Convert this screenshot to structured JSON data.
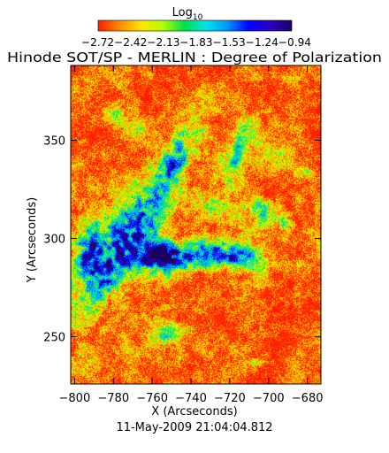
{
  "chart_data": {
    "type": "heatmap",
    "title": "Hinode SOT/SP - MERLIN : Degree of Polarization",
    "timestamp": "11-May-2009 21:04:04.812",
    "xlabel": "X (Arcseconds)",
    "ylabel": "Y (Arcseconds)",
    "xlim": [
      -802,
      -673
    ],
    "ylim": [
      226,
      388
    ],
    "x_ticks": [
      -800,
      -780,
      -760,
      -740,
      -720,
      -700,
      -680
    ],
    "x_tick_labels": [
      "−800",
      "−780",
      "−760",
      "−740",
      "−720",
      "−700",
      "−680"
    ],
    "y_ticks": [
      250,
      300,
      350
    ],
    "y_tick_labels": [
      "250",
      "300",
      "350"
    ],
    "colorbar": {
      "label": "Log",
      "label_subscript": "10",
      "scale": "log10",
      "range": [
        -2.72,
        -0.94
      ],
      "ticks": [
        -2.72,
        -2.42,
        -2.13,
        -1.83,
        -1.53,
        -1.24,
        -0.94
      ],
      "tick_labels_text": "−2.72−2.42−2.13−1.83−1.53−1.24−0.94",
      "colors": [
        "#ff1c00",
        "#ff8c00",
        "#ffe600",
        "#b4ff00",
        "#00e04a",
        "#00e6e6",
        "#0096ff",
        "#0000ff",
        "#2a00c0",
        "#1a0060"
      ]
    },
    "field": {
      "background_value": -2.6,
      "features": [
        {
          "region": "diagonal network lane from (-796,262) to (-742,356)",
          "peak_value": -1.25
        },
        {
          "region": "central blob near (-754,293)",
          "peak_value": -1.1
        },
        {
          "region": "lower-left patch near (-792,282)",
          "peak_value": -1.3
        },
        {
          "region": "central chain near (-740,300) to (-712,296)",
          "peak_value": -1.6
        },
        {
          "region": "right patch near (-717,340)",
          "peak_value": -1.75
        },
        {
          "region": "right patch near (-705,305)",
          "peak_value": -1.85
        },
        {
          "region": "lower spot near (-752,260)",
          "peak_value": -1.8
        },
        {
          "region": "upper-left patch near (-776,368)",
          "peak_value": -2.0
        },
        {
          "region": "small spot near (-685,340)",
          "peak_value": -1.9
        },
        {
          "region": "small spot near (-698,242)",
          "peak_value": -1.9
        }
      ]
    }
  }
}
